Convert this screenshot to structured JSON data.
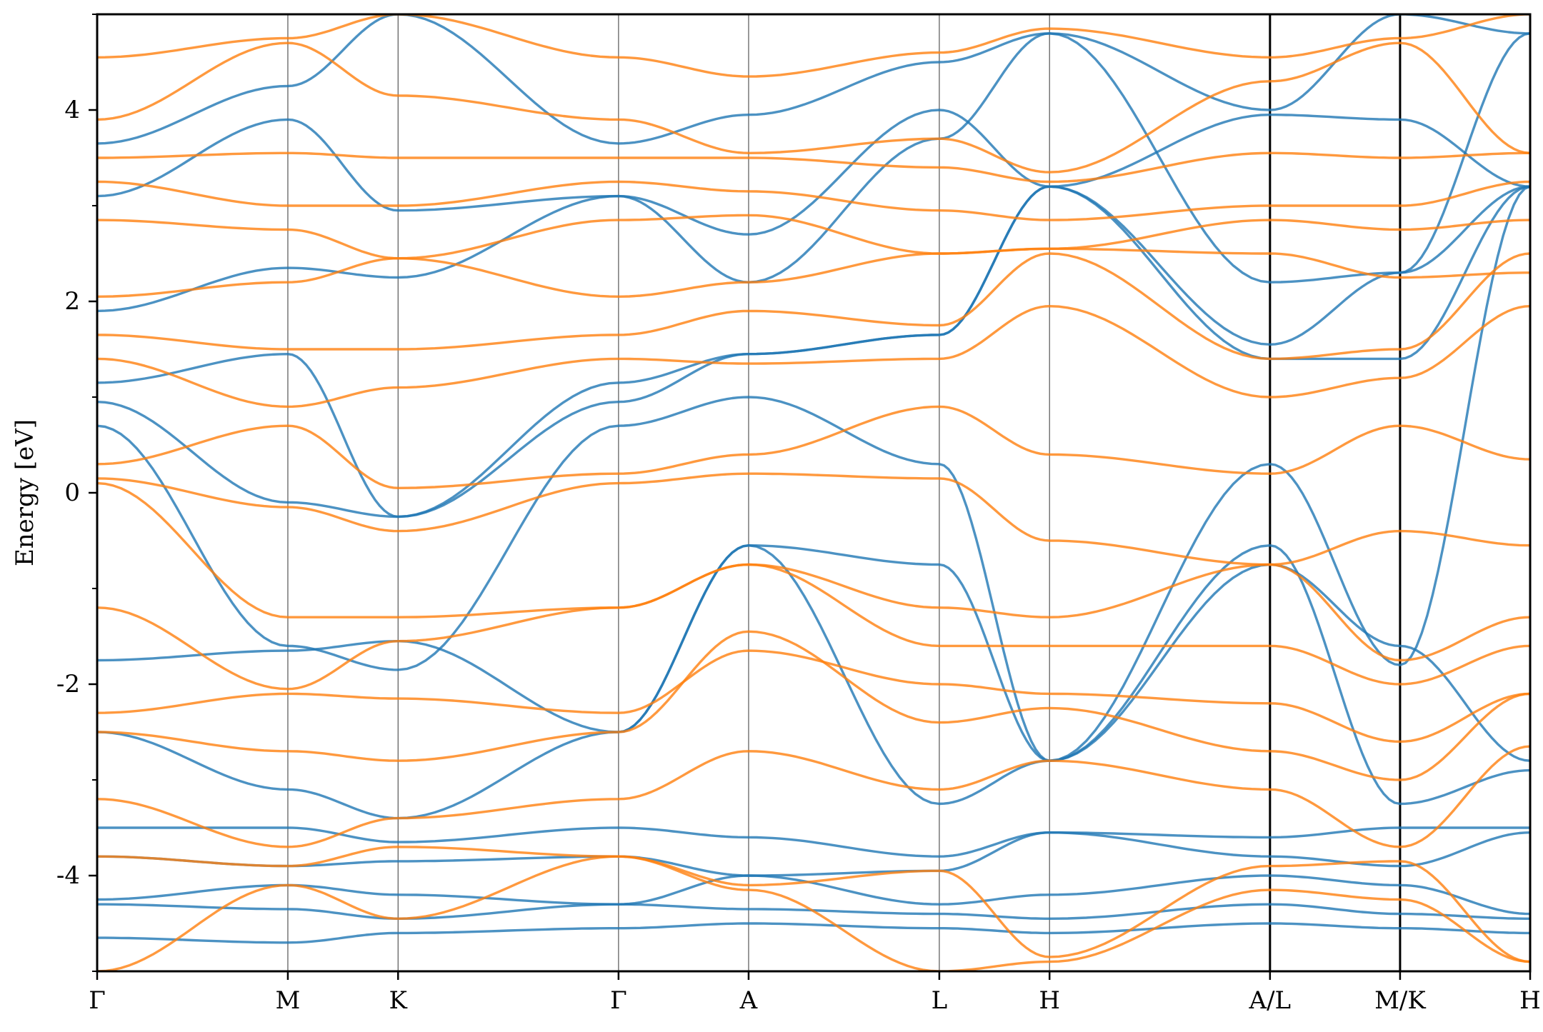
{
  "chart_data": {
    "type": "line",
    "title": "",
    "xlabel": "",
    "ylabel": "Energy [eV]",
    "ylim": [
      -5,
      5
    ],
    "yticks": [
      -4,
      -2,
      0,
      2,
      4
    ],
    "ytick_labels": [
      "-4",
      "-2",
      "0",
      "2",
      "4"
    ],
    "ytick_minor": [
      -5,
      -3,
      -1,
      1,
      3,
      5
    ],
    "grid": false,
    "legend": "none",
    "xlim": [
      0,
      13
    ],
    "kpoints": [
      {
        "label": "Γ",
        "x": 0
      },
      {
        "label": "M",
        "x": 1.73
      },
      {
        "label": "K",
        "x": 2.73
      },
      {
        "label": "Γ",
        "x": 4.73
      },
      {
        "label": "A",
        "x": 5.91
      },
      {
        "label": "L",
        "x": 7.64
      },
      {
        "label": "H",
        "x": 8.64
      },
      {
        "label": "A/L",
        "x": 10.64
      },
      {
        "label": "M/K",
        "x": 11.82
      },
      {
        "label": "H",
        "x": 13.0
      }
    ],
    "series": [
      {
        "color": "#1f77b4",
        "bands": [
          [
            -4.65,
            -4.7,
            -4.6,
            -4.55,
            -4.5,
            -4.55,
            -4.6,
            -4.5,
            -4.55,
            -4.6
          ],
          [
            -4.3,
            -4.35,
            -4.45,
            -4.3,
            -4.35,
            -4.4,
            -4.45,
            -4.3,
            -4.4,
            -4.45
          ],
          [
            -4.25,
            -4.1,
            -4.2,
            -4.3,
            -4.0,
            -4.3,
            -4.2,
            -4.0,
            -4.1,
            -4.4
          ],
          [
            -3.8,
            -3.9,
            -3.85,
            -3.8,
            -4.0,
            -3.95,
            -3.55,
            -3.8,
            -3.9,
            -3.55
          ],
          [
            -3.5,
            -3.5,
            -3.65,
            -3.5,
            -3.6,
            -3.8,
            -3.55,
            -3.6,
            -3.5,
            -3.5
          ],
          [
            -2.5,
            -3.1,
            -3.4,
            -2.5,
            -0.55,
            -3.25,
            -2.8,
            -0.55,
            -3.25,
            -2.9
          ],
          [
            -1.75,
            -1.65,
            -1.55,
            -2.5,
            -0.55,
            -0.75,
            -2.8,
            -0.75,
            -1.6,
            -2.8
          ],
          [
            0.7,
            -1.6,
            -1.85,
            0.7,
            1.0,
            0.3,
            -2.8,
            0.3,
            -1.8,
            3.2
          ],
          [
            0.95,
            -0.1,
            -0.25,
            0.95,
            1.45,
            1.65,
            3.2,
            1.4,
            1.4,
            3.2
          ],
          [
            1.15,
            1.45,
            -0.25,
            1.15,
            1.45,
            1.65,
            3.2,
            1.55,
            2.3,
            3.2
          ],
          [
            1.9,
            2.35,
            2.25,
            3.1,
            2.2,
            3.7,
            4.8,
            2.2,
            2.3,
            4.8
          ],
          [
            3.1,
            3.9,
            2.95,
            3.1,
            2.7,
            4.0,
            3.2,
            3.95,
            3.9,
            3.2
          ],
          [
            3.65,
            4.25,
            5.0,
            3.65,
            3.95,
            4.5,
            4.8,
            4.0,
            5.0,
            4.8
          ]
        ]
      },
      {
        "color": "#ff7f0e",
        "bands": [
          [
            -5.0,
            -4.1,
            -4.45,
            -3.8,
            -4.15,
            -5.0,
            -4.9,
            -4.15,
            -4.25,
            -4.9
          ],
          [
            -3.8,
            -3.9,
            -3.7,
            -3.8,
            -4.1,
            -3.95,
            -4.85,
            -3.9,
            -3.85,
            -4.9
          ],
          [
            -3.2,
            -3.7,
            -3.4,
            -3.2,
            -2.7,
            -3.1,
            -2.8,
            -3.1,
            -3.7,
            -2.65
          ],
          [
            -2.5,
            -2.7,
            -2.8,
            -2.5,
            -1.45,
            -2.4,
            -2.25,
            -2.7,
            -3.0,
            -2.1
          ],
          [
            -2.3,
            -2.1,
            -2.15,
            -2.3,
            -1.65,
            -2.0,
            -2.1,
            -2.2,
            -2.6,
            -2.1
          ],
          [
            -1.2,
            -2.05,
            -1.55,
            -1.2,
            -0.75,
            -1.6,
            -1.6,
            -1.6,
            -2.0,
            -1.6
          ],
          [
            0.1,
            -1.3,
            -1.3,
            -1.2,
            -0.75,
            -1.2,
            -1.3,
            -0.75,
            -1.75,
            -1.3
          ],
          [
            0.15,
            -0.15,
            -0.4,
            0.1,
            0.2,
            0.15,
            -0.5,
            -0.75,
            -0.4,
            -0.55
          ],
          [
            0.3,
            0.7,
            0.05,
            0.2,
            0.4,
            0.9,
            0.4,
            0.2,
            0.7,
            0.35
          ],
          [
            1.4,
            0.9,
            1.1,
            1.4,
            1.35,
            1.4,
            1.95,
            1.0,
            1.2,
            1.95
          ],
          [
            1.65,
            1.5,
            1.5,
            1.65,
            1.9,
            1.75,
            2.5,
            1.4,
            1.5,
            2.5
          ],
          [
            2.05,
            2.2,
            2.45,
            2.05,
            2.2,
            2.5,
            2.55,
            2.5,
            2.25,
            2.3
          ],
          [
            2.85,
            2.75,
            2.45,
            2.85,
            2.9,
            2.5,
            2.55,
            2.85,
            2.75,
            2.85
          ],
          [
            3.25,
            3.0,
            3.0,
            3.25,
            3.15,
            2.95,
            2.85,
            3.0,
            3.0,
            3.25
          ],
          [
            3.5,
            3.55,
            3.5,
            3.5,
            3.5,
            3.4,
            3.25,
            3.55,
            3.5,
            3.55
          ],
          [
            3.9,
            4.7,
            4.15,
            3.9,
            3.55,
            3.7,
            3.35,
            4.3,
            4.7,
            3.55
          ],
          [
            4.55,
            4.75,
            5.0,
            4.55,
            4.35,
            4.6,
            4.85,
            4.55,
            4.75,
            5.0
          ]
        ]
      }
    ]
  }
}
